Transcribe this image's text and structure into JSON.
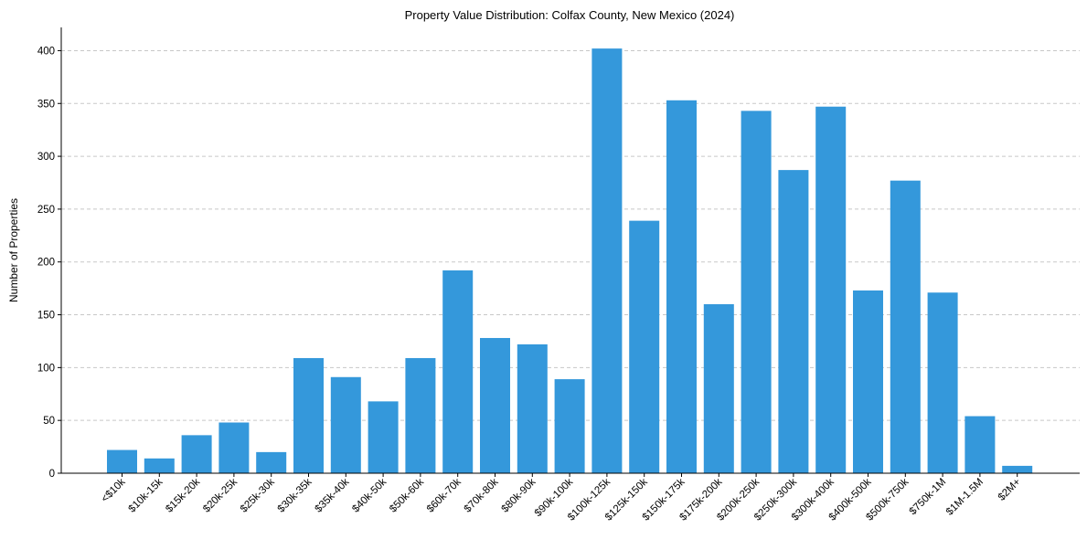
{
  "chart_data": {
    "type": "bar",
    "title": "Property Value Distribution: Colfax County, New Mexico (2024)",
    "xlabel": "",
    "ylabel": "Number of Properties",
    "ylim": [
      0,
      422
    ],
    "yticks": [
      0,
      50,
      100,
      150,
      200,
      250,
      300,
      350,
      400
    ],
    "grid": "y-dashed",
    "bar_color": "#3498db",
    "categories": [
      "<$10k",
      "$10k-15k",
      "$15k-20k",
      "$20k-25k",
      "$25k-30k",
      "$30k-35k",
      "$35k-40k",
      "$40k-50k",
      "$50k-60k",
      "$60k-70k",
      "$70k-80k",
      "$80k-90k",
      "$90k-100k",
      "$100k-125k",
      "$125k-150k",
      "$150k-175k",
      "$175k-200k",
      "$200k-250k",
      "$250k-300k",
      "$300k-400k",
      "$400k-500k",
      "$500k-750k",
      "$750k-1M",
      "$1M-1.5M",
      "$2M+"
    ],
    "values": [
      22,
      14,
      36,
      48,
      20,
      109,
      91,
      68,
      109,
      192,
      128,
      122,
      89,
      402,
      239,
      353,
      160,
      343,
      287,
      347,
      173,
      277,
      171,
      54,
      7
    ]
  }
}
